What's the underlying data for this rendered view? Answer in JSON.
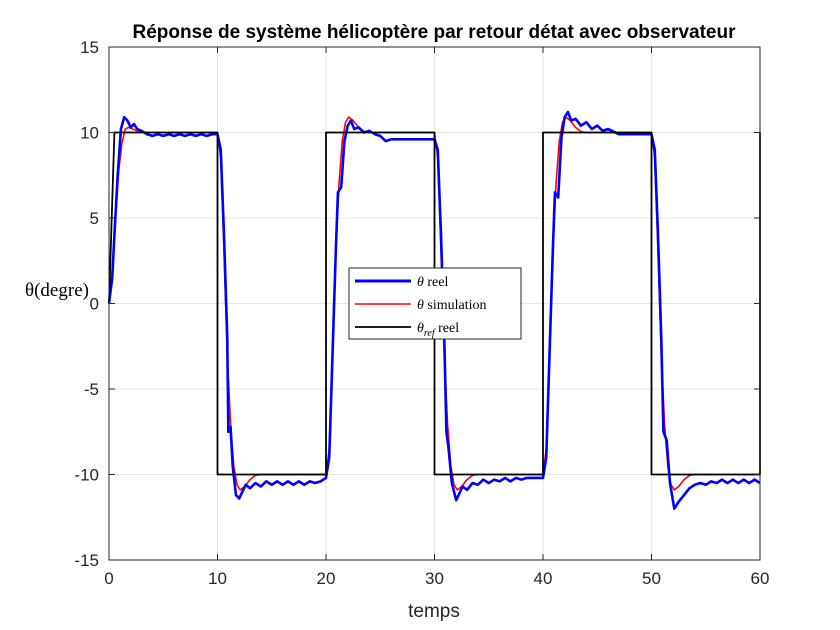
{
  "chart_data": {
    "type": "line",
    "title": "Réponse de système hélicoptère par retour détat avec observateur",
    "xlabel": "temps",
    "ylabel": "θ(degre)",
    "xlim": [
      0,
      60
    ],
    "ylim": [
      -15,
      15
    ],
    "xticks": [
      "0",
      "10",
      "20",
      "30",
      "40",
      "50",
      "60"
    ],
    "yticks": [
      "-15",
      "-10",
      "-5",
      "0",
      "5",
      "10",
      "15"
    ],
    "grid": true,
    "legend_position": "center",
    "series": [
      {
        "name": "θ reel",
        "legend_label": {
          "sym": "θ",
          "sub": "",
          "text": " reel"
        },
        "color": "#0000ff",
        "points": [
          [
            0,
            0
          ],
          [
            0.3,
            1.5
          ],
          [
            0.5,
            4
          ],
          [
            0.8,
            7.5
          ],
          [
            1.1,
            10.2
          ],
          [
            1.4,
            10.9
          ],
          [
            1.7,
            10.7
          ],
          [
            2.0,
            10.3
          ],
          [
            2.3,
            10.5
          ],
          [
            2.6,
            10.2
          ],
          [
            3.0,
            10.1
          ],
          [
            3.5,
            9.9
          ],
          [
            4.0,
            9.8
          ],
          [
            4.5,
            9.9
          ],
          [
            5.0,
            9.8
          ],
          [
            5.5,
            9.9
          ],
          [
            6.0,
            9.8
          ],
          [
            6.5,
            9.9
          ],
          [
            7.0,
            9.8
          ],
          [
            7.5,
            9.9
          ],
          [
            8.0,
            9.8
          ],
          [
            8.5,
            9.9
          ],
          [
            9.0,
            9.8
          ],
          [
            9.5,
            9.9
          ],
          [
            10.0,
            9.9
          ],
          [
            10.3,
            9.0
          ],
          [
            10.6,
            4
          ],
          [
            10.9,
            -2
          ],
          [
            11.0,
            -7.5
          ],
          [
            11.2,
            -7.2
          ],
          [
            11.4,
            -9.5
          ],
          [
            11.7,
            -11.2
          ],
          [
            12.0,
            -11.4
          ],
          [
            12.3,
            -11.0
          ],
          [
            12.6,
            -10.6
          ],
          [
            13.0,
            -10.8
          ],
          [
            13.5,
            -10.5
          ],
          [
            14.0,
            -10.7
          ],
          [
            14.5,
            -10.4
          ],
          [
            15.0,
            -10.6
          ],
          [
            15.5,
            -10.4
          ],
          [
            16.0,
            -10.6
          ],
          [
            16.5,
            -10.4
          ],
          [
            17.0,
            -10.6
          ],
          [
            17.5,
            -10.4
          ],
          [
            18.0,
            -10.6
          ],
          [
            18.5,
            -10.4
          ],
          [
            19.0,
            -10.5
          ],
          [
            19.5,
            -10.4
          ],
          [
            20.0,
            -10.2
          ],
          [
            20.3,
            -9
          ],
          [
            20.6,
            -3
          ],
          [
            20.9,
            3
          ],
          [
            21.1,
            6.5
          ],
          [
            21.4,
            6.8
          ],
          [
            21.7,
            9.5
          ],
          [
            22.0,
            10.4
          ],
          [
            22.3,
            10.7
          ],
          [
            22.6,
            10.2
          ],
          [
            23.0,
            10.3
          ],
          [
            23.5,
            10.0
          ],
          [
            24.0,
            10.1
          ],
          [
            24.5,
            9.9
          ],
          [
            25.0,
            9.8
          ],
          [
            25.5,
            9.5
          ],
          [
            26.0,
            9.6
          ],
          [
            27.0,
            9.6
          ],
          [
            28.0,
            9.6
          ],
          [
            29.0,
            9.6
          ],
          [
            30.0,
            9.6
          ],
          [
            30.3,
            9.0
          ],
          [
            30.6,
            4
          ],
          [
            30.9,
            -2
          ],
          [
            31.1,
            -7.5
          ],
          [
            31.3,
            -8.5
          ],
          [
            31.6,
            -10.5
          ],
          [
            32.0,
            -11.5
          ],
          [
            32.3,
            -11.1
          ],
          [
            32.6,
            -10.7
          ],
          [
            33.0,
            -10.9
          ],
          [
            33.5,
            -10.5
          ],
          [
            34.0,
            -10.6
          ],
          [
            34.5,
            -10.3
          ],
          [
            35.0,
            -10.5
          ],
          [
            35.5,
            -10.3
          ],
          [
            36.0,
            -10.4
          ],
          [
            36.5,
            -10.2
          ],
          [
            37.0,
            -10.4
          ],
          [
            37.5,
            -10.2
          ],
          [
            38.0,
            -10.3
          ],
          [
            38.5,
            -10.2
          ],
          [
            39.0,
            -10.2
          ],
          [
            40.0,
            -10.2
          ],
          [
            40.3,
            -9
          ],
          [
            40.6,
            -3
          ],
          [
            40.9,
            3
          ],
          [
            41.1,
            6.5
          ],
          [
            41.4,
            6.2
          ],
          [
            41.7,
            9.7
          ],
          [
            42.0,
            10.9
          ],
          [
            42.3,
            11.2
          ],
          [
            42.6,
            10.7
          ],
          [
            43.0,
            10.8
          ],
          [
            43.5,
            10.4
          ],
          [
            44.0,
            10.6
          ],
          [
            44.5,
            10.2
          ],
          [
            45.0,
            10.4
          ],
          [
            45.5,
            10.1
          ],
          [
            46.0,
            10.2
          ],
          [
            47.0,
            9.9
          ],
          [
            48.0,
            9.9
          ],
          [
            49.0,
            9.9
          ],
          [
            50.0,
            9.9
          ],
          [
            50.3,
            9.0
          ],
          [
            50.6,
            4
          ],
          [
            50.9,
            -2
          ],
          [
            51.1,
            -7.5
          ],
          [
            51.4,
            -8
          ],
          [
            51.7,
            -10.5
          ],
          [
            52.1,
            -12.0
          ],
          [
            52.5,
            -11.6
          ],
          [
            53.0,
            -11.2
          ],
          [
            53.5,
            -10.8
          ],
          [
            54.0,
            -10.6
          ],
          [
            54.5,
            -10.5
          ],
          [
            55.0,
            -10.6
          ],
          [
            55.5,
            -10.4
          ],
          [
            56.0,
            -10.5
          ],
          [
            56.5,
            -10.3
          ],
          [
            57.0,
            -10.5
          ],
          [
            57.5,
            -10.3
          ],
          [
            58.0,
            -10.5
          ],
          [
            58.5,
            -10.3
          ],
          [
            59.0,
            -10.5
          ],
          [
            59.5,
            -10.3
          ],
          [
            60.0,
            -10.5
          ]
        ]
      },
      {
        "name": "θ simulation",
        "legend_label": {
          "sym": "θ",
          "sub": "",
          "text": " simulation"
        },
        "color": "#ff0000",
        "points": [
          [
            0,
            0
          ],
          [
            0.3,
            2
          ],
          [
            0.6,
            5
          ],
          [
            0.9,
            7.8
          ],
          [
            1.2,
            9.4
          ],
          [
            1.5,
            10.2
          ],
          [
            1.8,
            10.3
          ],
          [
            2.2,
            10.2
          ],
          [
            2.8,
            10.05
          ],
          [
            3.5,
            10.0
          ],
          [
            10.0,
            10.0
          ],
          [
            10.3,
            8.5
          ],
          [
            10.6,
            3
          ],
          [
            10.9,
            -3
          ],
          [
            11.2,
            -7
          ],
          [
            11.5,
            -9.5
          ],
          [
            11.8,
            -10.6
          ],
          [
            12.1,
            -10.9
          ],
          [
            12.5,
            -10.7
          ],
          [
            13.0,
            -10.3
          ],
          [
            13.5,
            -10.05
          ],
          [
            14.0,
            -10.0
          ],
          [
            20.0,
            -10.0
          ],
          [
            20.3,
            -8.5
          ],
          [
            20.6,
            -3
          ],
          [
            20.9,
            3
          ],
          [
            21.2,
            7
          ],
          [
            21.5,
            9.5
          ],
          [
            21.8,
            10.6
          ],
          [
            22.1,
            10.9
          ],
          [
            22.5,
            10.7
          ],
          [
            23.0,
            10.3
          ],
          [
            23.5,
            10.05
          ],
          [
            24.0,
            10.0
          ],
          [
            30.0,
            10.0
          ],
          [
            30.3,
            8.5
          ],
          [
            30.6,
            3
          ],
          [
            30.9,
            -3
          ],
          [
            31.2,
            -7
          ],
          [
            31.5,
            -9.5
          ],
          [
            31.8,
            -10.6
          ],
          [
            32.1,
            -10.9
          ],
          [
            32.5,
            -10.7
          ],
          [
            33.0,
            -10.3
          ],
          [
            33.5,
            -10.05
          ],
          [
            34.0,
            -10.0
          ],
          [
            40.0,
            -10.0
          ],
          [
            40.3,
            -8.5
          ],
          [
            40.6,
            -3
          ],
          [
            40.9,
            3
          ],
          [
            41.2,
            7
          ],
          [
            41.5,
            9.5
          ],
          [
            41.8,
            10.6
          ],
          [
            42.1,
            10.9
          ],
          [
            42.5,
            10.7
          ],
          [
            43.0,
            10.3
          ],
          [
            43.5,
            10.05
          ],
          [
            44.0,
            10.0
          ],
          [
            50.0,
            10.0
          ],
          [
            50.3,
            8.5
          ],
          [
            50.6,
            3
          ],
          [
            50.9,
            -3
          ],
          [
            51.2,
            -7
          ],
          [
            51.5,
            -9.5
          ],
          [
            51.8,
            -10.6
          ],
          [
            52.1,
            -10.9
          ],
          [
            52.5,
            -10.7
          ],
          [
            53.0,
            -10.3
          ],
          [
            53.5,
            -10.05
          ],
          [
            54.0,
            -10.0
          ],
          [
            60.0,
            -10.0
          ]
        ]
      },
      {
        "name": "θref reel",
        "legend_label": {
          "sym": "θ",
          "sub": "ref",
          "text": " reel"
        },
        "color": "#000000",
        "points": [
          [
            0,
            0
          ],
          [
            0.5,
            10
          ],
          [
            10,
            10
          ],
          [
            10,
            -10
          ],
          [
            20,
            -10
          ],
          [
            20,
            10
          ],
          [
            30,
            10
          ],
          [
            30,
            -10
          ],
          [
            40,
            -10
          ],
          [
            40,
            10
          ],
          [
            50,
            10
          ],
          [
            50,
            -10
          ],
          [
            60,
            -10
          ],
          [
            60,
            10
          ]
        ]
      }
    ]
  }
}
